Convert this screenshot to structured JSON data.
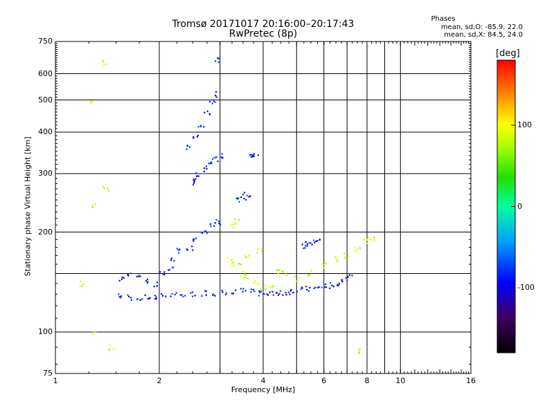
{
  "header": {
    "title_line1": "Tromsø 20171017 20:16:00–20:17:43",
    "title_line2": "RwPretec (8p)",
    "phases_heading": "Phases",
    "phases_o": "mean, sd,O: -85.9, 22.0",
    "phases_x": "mean, sd,X:  84.5, 24.0"
  },
  "colorbar": {
    "unit_label": "[deg]",
    "ticks": [
      {
        "value": 100,
        "label": "100"
      },
      {
        "value": 0,
        "label": "0"
      },
      {
        "value": -100,
        "label": "-100"
      }
    ],
    "range": [
      -180,
      180
    ]
  },
  "chart_data": {
    "type": "scatter",
    "title": "Tromsø 20171017 20:16:00–20:17:43",
    "subtitle": "RwPretec (8p)",
    "xlabel": "Frequency [MHz]",
    "ylabel": "Stationary phase Virtual Height [km]",
    "x_scale": "log",
    "y_scale": "log",
    "xlim": [
      1,
      16
    ],
    "ylim": [
      75,
      750
    ],
    "x_ticks": [
      1,
      2,
      4,
      6,
      8,
      10,
      16
    ],
    "x_tick_labels": [
      "1",
      "2",
      "4",
      "6",
      "8",
      "10",
      "16"
    ],
    "x_minor_ticks": [
      3,
      5,
      7,
      9
    ],
    "y_ticks": [
      75,
      100,
      200,
      300,
      400,
      500,
      600,
      750
    ],
    "y_tick_labels": [
      "75",
      "100",
      "200",
      "300",
      "400",
      "500",
      "600",
      "750"
    ],
    "y_minor_ticks": [
      150
    ],
    "grid": true,
    "color_by": "phase [deg]",
    "series": [
      {
        "name": "O-mode",
        "phase_mean": -85.9,
        "phase_sd": 22.0,
        "points": [
          [
            1.55,
            128
          ],
          [
            1.65,
            127
          ],
          [
            1.75,
            126
          ],
          [
            1.85,
            127
          ],
          [
            1.95,
            128
          ],
          [
            2.05,
            129
          ],
          [
            2.2,
            129
          ],
          [
            2.35,
            130
          ],
          [
            2.5,
            130
          ],
          [
            2.7,
            131
          ],
          [
            2.9,
            131
          ],
          [
            3.1,
            132
          ],
          [
            3.3,
            133
          ],
          [
            3.5,
            133
          ],
          [
            3.7,
            132
          ],
          [
            3.9,
            131
          ],
          [
            4.1,
            131
          ],
          [
            4.3,
            131
          ],
          [
            4.5,
            131
          ],
          [
            4.7,
            132
          ],
          [
            4.9,
            133
          ],
          [
            5.1,
            134
          ],
          [
            5.4,
            135
          ],
          [
            5.7,
            136
          ],
          [
            6.0,
            137
          ],
          [
            6.3,
            138
          ],
          [
            6.6,
            140
          ],
          [
            6.9,
            143
          ],
          [
            7.1,
            146
          ],
          [
            1.55,
            145
          ],
          [
            1.65,
            150
          ],
          [
            1.75,
            148
          ],
          [
            1.85,
            142
          ],
          [
            1.95,
            140
          ],
          [
            2.05,
            150
          ],
          [
            2.15,
            155
          ],
          [
            2.2,
            165
          ],
          [
            2.3,
            175
          ],
          [
            2.45,
            180
          ],
          [
            2.55,
            190
          ],
          [
            2.7,
            200
          ],
          [
            2.85,
            210
          ],
          [
            2.95,
            215
          ],
          [
            2.5,
            280
          ],
          [
            2.55,
            290
          ],
          [
            2.6,
            300
          ],
          [
            2.7,
            310
          ],
          [
            2.8,
            320
          ],
          [
            2.9,
            330
          ],
          [
            3.0,
            340
          ],
          [
            2.45,
            360
          ],
          [
            2.55,
            390
          ],
          [
            2.65,
            420
          ],
          [
            2.75,
            460
          ],
          [
            2.85,
            490
          ],
          [
            2.9,
            520
          ],
          [
            2.95,
            660
          ],
          [
            3.4,
            250
          ],
          [
            3.5,
            255
          ],
          [
            3.6,
            260
          ],
          [
            3.7,
            340
          ],
          [
            3.8,
            342
          ],
          [
            5.2,
            182
          ],
          [
            5.4,
            184
          ],
          [
            5.6,
            186
          ],
          [
            5.8,
            187
          ]
        ]
      },
      {
        "name": "X-mode",
        "phase_mean": 84.5,
        "phase_sd": 24.0,
        "points": [
          [
            3.2,
            165
          ],
          [
            3.3,
            160
          ],
          [
            3.4,
            158
          ],
          [
            3.5,
            150
          ],
          [
            3.6,
            148
          ],
          [
            3.8,
            140
          ],
          [
            4.0,
            137
          ],
          [
            4.2,
            135
          ],
          [
            3.3,
            210
          ],
          [
            3.35,
            215
          ],
          [
            3.6,
            170
          ],
          [
            3.9,
            175
          ],
          [
            4.4,
            152
          ],
          [
            4.6,
            150
          ],
          [
            5.0,
            145
          ],
          [
            5.5,
            150
          ],
          [
            6.0,
            158
          ],
          [
            6.5,
            165
          ],
          [
            7.0,
            170
          ],
          [
            7.5,
            178
          ],
          [
            8.0,
            188
          ],
          [
            8.3,
            190
          ],
          [
            1.4,
            650
          ],
          [
            1.25,
            490
          ],
          [
            1.3,
            240
          ],
          [
            1.4,
            270
          ],
          [
            1.2,
            140
          ],
          [
            1.3,
            100
          ],
          [
            1.45,
            90
          ],
          [
            7.5,
            88
          ]
        ]
      }
    ]
  }
}
